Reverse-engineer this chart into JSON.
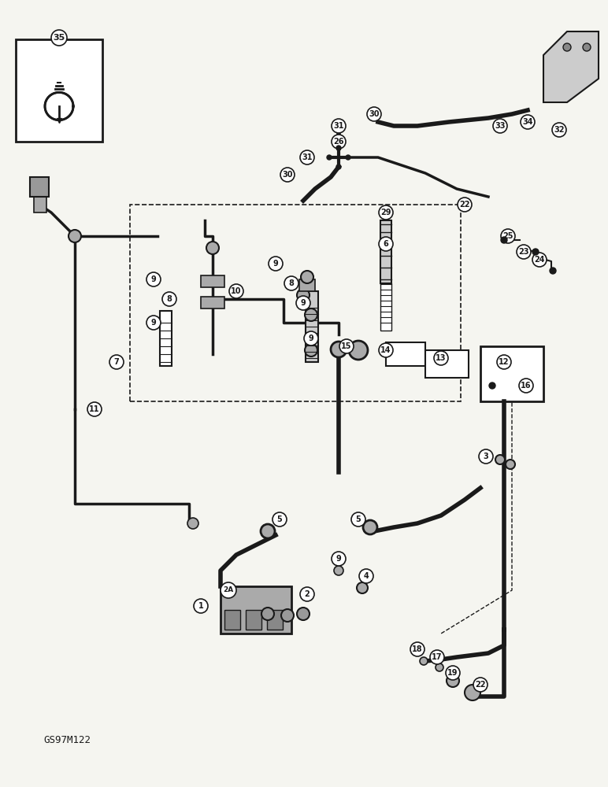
{
  "bg_color": "#f5f5f0",
  "line_color": "#1a1a1a",
  "label_fontsize": 8,
  "watermark": "GS97M122",
  "part_numbers": [
    1,
    2,
    3,
    4,
    5,
    6,
    7,
    8,
    9,
    10,
    11,
    12,
    13,
    14,
    15,
    16,
    17,
    18,
    19,
    22,
    23,
    24,
    25,
    26,
    29,
    30,
    31,
    32,
    33,
    34,
    35,
    "2A"
  ],
  "circle_bg": "white",
  "circle_edge": "#1a1a1a"
}
